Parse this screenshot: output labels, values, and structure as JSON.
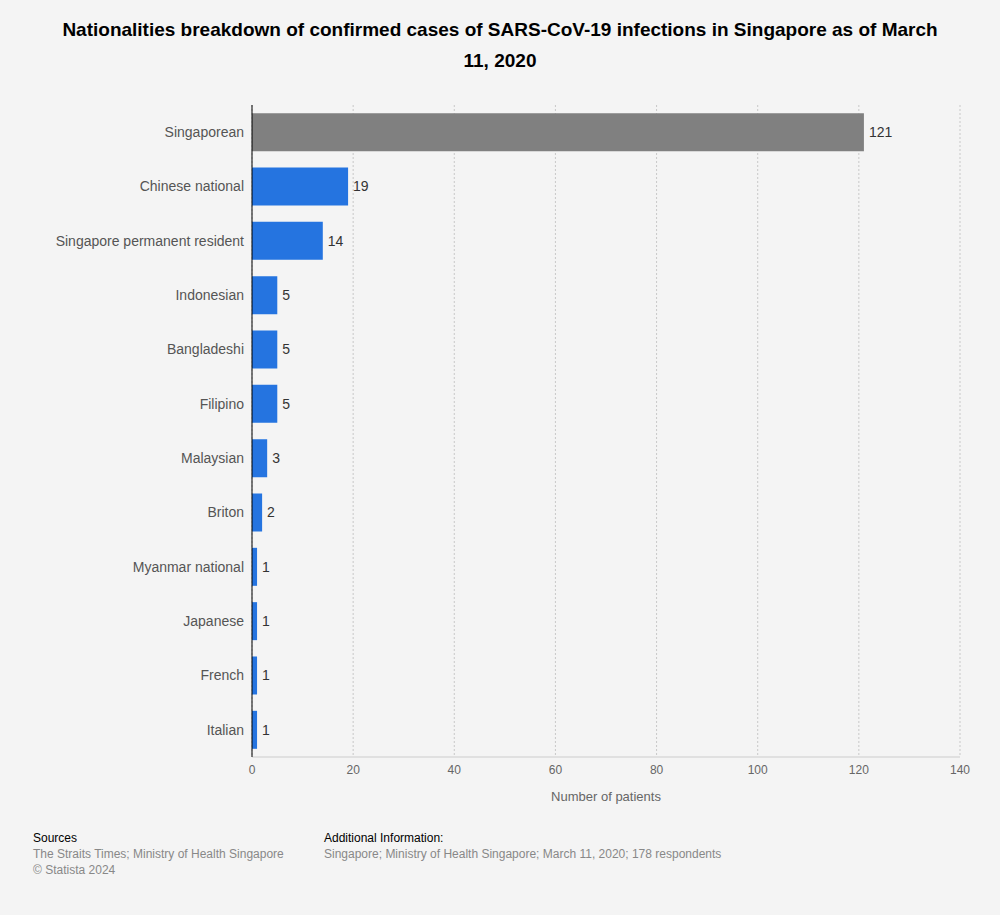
{
  "chart_data": {
    "type": "bar",
    "orientation": "horizontal",
    "title": "Nationalities breakdown of confirmed cases of SARS-CoV-19 infections in Singapore as of March 11, 2020",
    "categories": [
      "Singaporean",
      "Chinese national",
      "Singapore permanent resident",
      "Indonesian",
      "Bangladeshi",
      "Filipino",
      "Malaysian",
      "Briton",
      "Myanmar national",
      "Japanese",
      "French",
      "Italian"
    ],
    "values": [
      121,
      19,
      14,
      5,
      5,
      5,
      3,
      2,
      1,
      1,
      1,
      1
    ],
    "colors": [
      "#808080",
      "#2574e0",
      "#2574e0",
      "#2574e0",
      "#2574e0",
      "#2574e0",
      "#2574e0",
      "#2574e0",
      "#2574e0",
      "#2574e0",
      "#2574e0",
      "#2574e0"
    ],
    "xlabel": "Number of patients",
    "xlim": [
      0,
      140
    ],
    "xticks": [
      0,
      20,
      40,
      60,
      80,
      100,
      120,
      140
    ],
    "grid": true,
    "data_labels": true,
    "annotations": [
      "Sources",
      "The Straits Times; Ministry of Health Singapore",
      "© Statista 2024",
      "Additional Information:",
      "Singapore; Ministry of Health Singapore; March 11, 2020; 178 respondents"
    ]
  }
}
